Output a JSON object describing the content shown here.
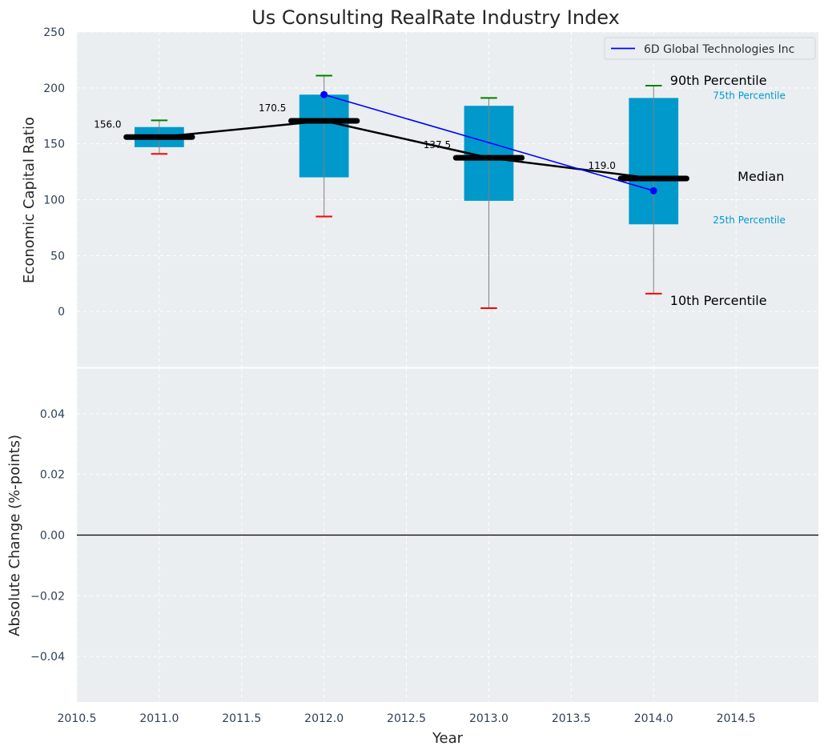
{
  "chart_data": [
    {
      "type": "box",
      "title": "Us Consulting RealRate Industry Index",
      "ylabel": "Economic Capital Ratio",
      "xlim": [
        2010.5,
        2015.0
      ],
      "ylim": [
        -50,
        250
      ],
      "yticks": [
        0,
        50,
        100,
        150,
        200,
        250
      ],
      "grid": true,
      "legend": {
        "placement": "top-right",
        "entries": [
          "6D Global Technologies Inc"
        ]
      },
      "boxes": [
        {
          "year": 2011,
          "p10": 141,
          "p25": 147,
          "median": 156.0,
          "p75": 165,
          "p90": 171
        },
        {
          "year": 2012,
          "p10": 85,
          "p25": 120,
          "median": 170.5,
          "p75": 194,
          "p90": 211
        },
        {
          "year": 2013,
          "p10": 3,
          "p25": 99,
          "median": 137.5,
          "p75": 184,
          "p90": 191
        },
        {
          "year": 2014,
          "p10": 16,
          "p25": 78,
          "median": 119.0,
          "p75": 191,
          "p90": 202
        }
      ],
      "median_labels": [
        "156.0",
        "170.5",
        "137.5",
        "119.0"
      ],
      "series": [
        {
          "name": "6D Global Technologies Inc",
          "x": [
            2012,
            2014
          ],
          "y": [
            194,
            108
          ],
          "color": "#0000ff"
        }
      ],
      "annotations": {
        "p90": "90th Percentile",
        "p75": "75th Percentile",
        "median": "Median",
        "p25": "25th Percentile",
        "p10": "10th Percentile"
      },
      "colors": {
        "box": "#0099cc",
        "median": "#000000",
        "p90_cap": "#008000",
        "p10_cap": "#ff0000",
        "whisker": "#808080",
        "background": "#eaeef0"
      }
    },
    {
      "type": "line",
      "xlabel": "Year",
      "ylabel": "Absolute Change (%-points)",
      "xlim": [
        2010.5,
        2015.0
      ],
      "ylim": [
        -0.055,
        0.055
      ],
      "xticks": [
        "2010.5",
        "2011.0",
        "2011.5",
        "2012.0",
        "2012.5",
        "2013.0",
        "2013.5",
        "2014.0",
        "2014.5"
      ],
      "yticks": [
        "0.04",
        "0.02",
        "0.00",
        "−0.02",
        "−0.04"
      ],
      "reference_line": 0,
      "grid": true
    }
  ]
}
